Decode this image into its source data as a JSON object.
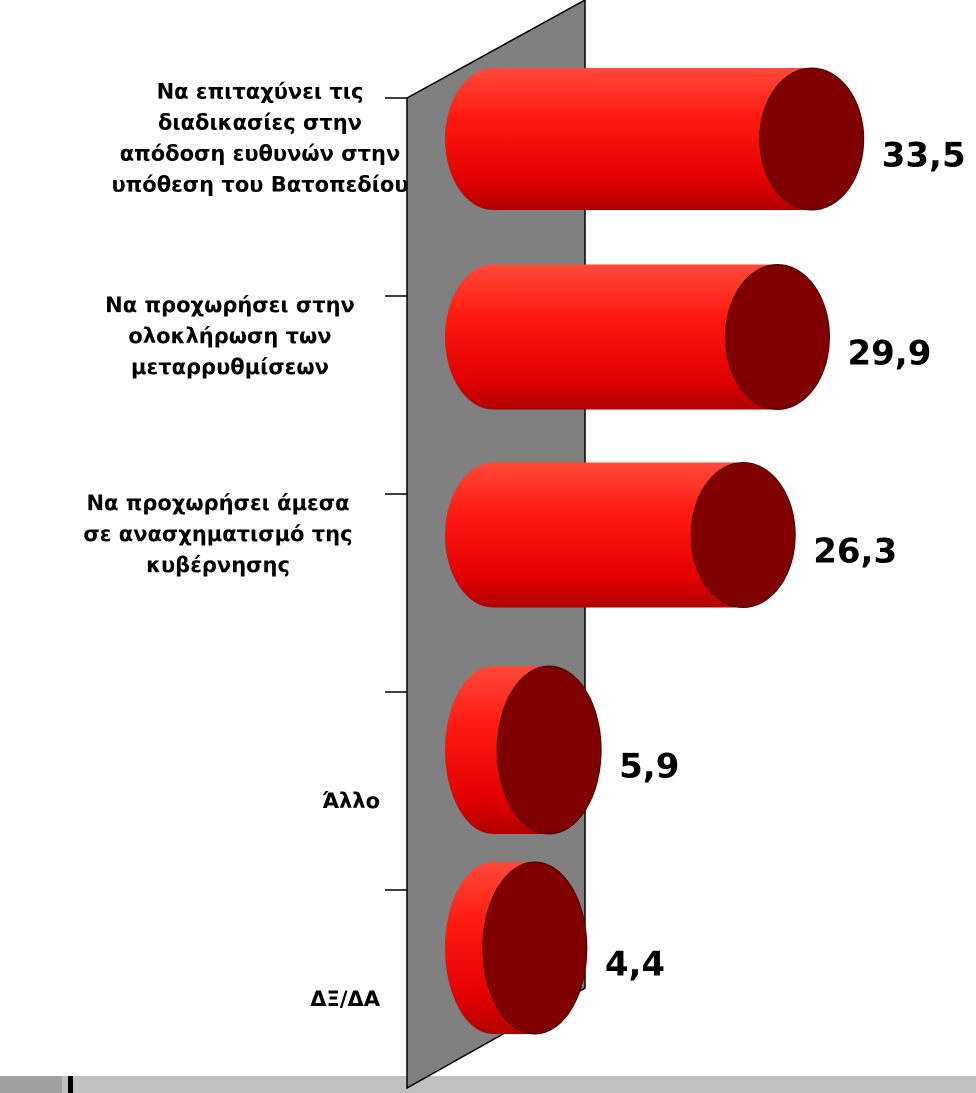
{
  "chart_data": {
    "type": "cylinder-bar",
    "categories": [
      "Να επιταχύνει τις\nδιαδικασίες στην\nαπόδοση ευθυνών στην\nυπόθεση του Βατοπεδίου",
      "Να προχωρήσει στην\nολοκλήρωση των\nμεταρρυθμίσεων",
      "Να προχωρήσει άμεσα\nσε ανασχηματισμό της\nκυβέρνησης",
      "Άλλο",
      "ΔΞ/ΔΑ"
    ],
    "values": [
      33.5,
      29.9,
      26.3,
      5.9,
      4.4
    ],
    "value_labels": [
      "33,5",
      "29,9",
      "26,3",
      "5,9",
      "4,4"
    ],
    "color": "#ff0000",
    "xlim": [
      0,
      35
    ]
  }
}
